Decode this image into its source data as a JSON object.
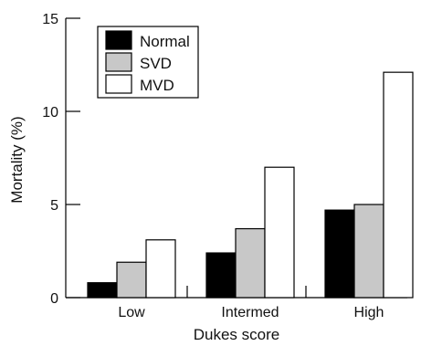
{
  "chart_data": {
    "type": "bar",
    "title": "",
    "xlabel": "Dukes score",
    "ylabel": "Mortality (%)",
    "categories": [
      "Low",
      "Intermed",
      "High"
    ],
    "yticks": [
      "0",
      "5",
      "10",
      "15"
    ],
    "ytick_values": [
      0,
      5,
      10,
      15
    ],
    "ylim": [
      0,
      15
    ],
    "grid": false,
    "legend_position": "top-left",
    "series": [
      {
        "name": "Normal",
        "values": [
          0.8,
          2.4,
          4.7
        ],
        "color": "#000000"
      },
      {
        "name": "SVD",
        "values": [
          1.9,
          3.7,
          5.0
        ],
        "color": "#c8c8c8"
      },
      {
        "name": "MVD",
        "values": [
          3.1,
          7.0,
          12.1
        ],
        "color": "#ffffff"
      }
    ]
  }
}
